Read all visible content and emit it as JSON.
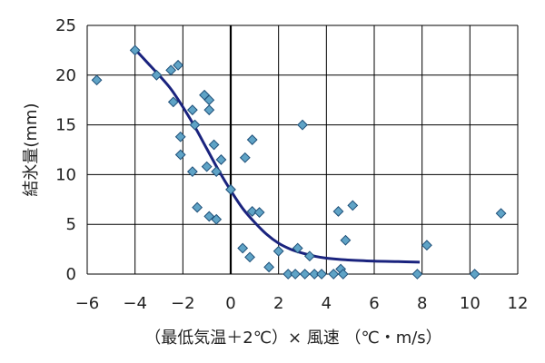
{
  "chart_data": {
    "type": "scatter",
    "title": "",
    "xlabel": "（最低気温＋2℃）× 風速 （℃・m/s）",
    "ylabel": "結氷量(mm)",
    "xlim": [
      -6,
      12
    ],
    "ylim": [
      0,
      25
    ],
    "xticks": [
      -6,
      -4,
      -2,
      0,
      2,
      4,
      6,
      8,
      10,
      12
    ],
    "yticks": [
      0,
      5,
      10,
      15,
      20,
      25
    ],
    "xtick_labels": [
      "−6",
      "−4",
      "−2",
      "0",
      "2",
      "4",
      "6",
      "8",
      "10",
      "12"
    ],
    "ytick_labels": [
      "0",
      "5",
      "10",
      "15",
      "20",
      "25"
    ],
    "grid": true,
    "colors": {
      "marker": "#5fa3c6",
      "marker_edge": "#1e4f78",
      "curve": "#1a237e",
      "grid": "#000000",
      "zero_line": "#000000"
    },
    "series": [
      {
        "type": "scatter",
        "points": [
          [
            -5.6,
            19.5
          ],
          [
            -4.0,
            22.5
          ],
          [
            -3.1,
            20.0
          ],
          [
            -2.5,
            20.5
          ],
          [
            -2.2,
            21.0
          ],
          [
            -2.4,
            17.3
          ],
          [
            -2.1,
            13.8
          ],
          [
            -2.1,
            12.0
          ],
          [
            -1.6,
            16.5
          ],
          [
            -1.5,
            15.0
          ],
          [
            -1.6,
            10.3
          ],
          [
            -1.4,
            6.7
          ],
          [
            -1.1,
            18.0
          ],
          [
            -0.9,
            17.5
          ],
          [
            -0.9,
            16.5
          ],
          [
            -1.0,
            10.8
          ],
          [
            -0.9,
            5.8
          ],
          [
            -0.7,
            13.0
          ],
          [
            -0.6,
            10.3
          ],
          [
            -0.6,
            5.5
          ],
          [
            -0.4,
            11.5
          ],
          [
            0.0,
            8.5
          ],
          [
            0.6,
            11.7
          ],
          [
            0.9,
            13.5
          ],
          [
            0.9,
            6.3
          ],
          [
            1.2,
            6.2
          ],
          [
            0.5,
            2.6
          ],
          [
            0.8,
            1.7
          ],
          [
            1.6,
            0.7
          ],
          [
            2.0,
            2.3
          ],
          [
            2.4,
            0.0
          ],
          [
            2.7,
            0.0
          ],
          [
            2.8,
            2.6
          ],
          [
            3.0,
            15.0
          ],
          [
            3.1,
            0.0
          ],
          [
            3.3,
            1.8
          ],
          [
            3.5,
            0.0
          ],
          [
            3.8,
            0.0
          ],
          [
            4.3,
            0.0
          ],
          [
            4.5,
            6.3
          ],
          [
            4.6,
            0.5
          ],
          [
            4.7,
            0.0
          ],
          [
            4.8,
            3.4
          ],
          [
            5.1,
            6.9
          ],
          [
            7.8,
            0.0
          ],
          [
            8.2,
            2.9
          ],
          [
            10.2,
            0.0
          ],
          [
            11.3,
            6.1
          ]
        ]
      },
      {
        "type": "line",
        "points": [
          [
            -4.0,
            22.6
          ],
          [
            -3.5,
            21.3
          ],
          [
            -3.0,
            20.0
          ],
          [
            -2.5,
            18.6
          ],
          [
            -2.0,
            16.8
          ],
          [
            -1.5,
            14.8
          ],
          [
            -1.0,
            12.6
          ],
          [
            -0.5,
            10.4
          ],
          [
            0.0,
            8.4
          ],
          [
            0.5,
            6.6
          ],
          [
            1.0,
            5.2
          ],
          [
            1.5,
            4.0
          ],
          [
            2.0,
            3.1
          ],
          [
            2.5,
            2.5
          ],
          [
            3.0,
            2.1
          ],
          [
            3.5,
            1.8
          ],
          [
            4.0,
            1.6
          ],
          [
            5.0,
            1.4
          ],
          [
            6.0,
            1.3
          ],
          [
            7.0,
            1.25
          ],
          [
            7.9,
            1.2
          ]
        ]
      }
    ]
  }
}
